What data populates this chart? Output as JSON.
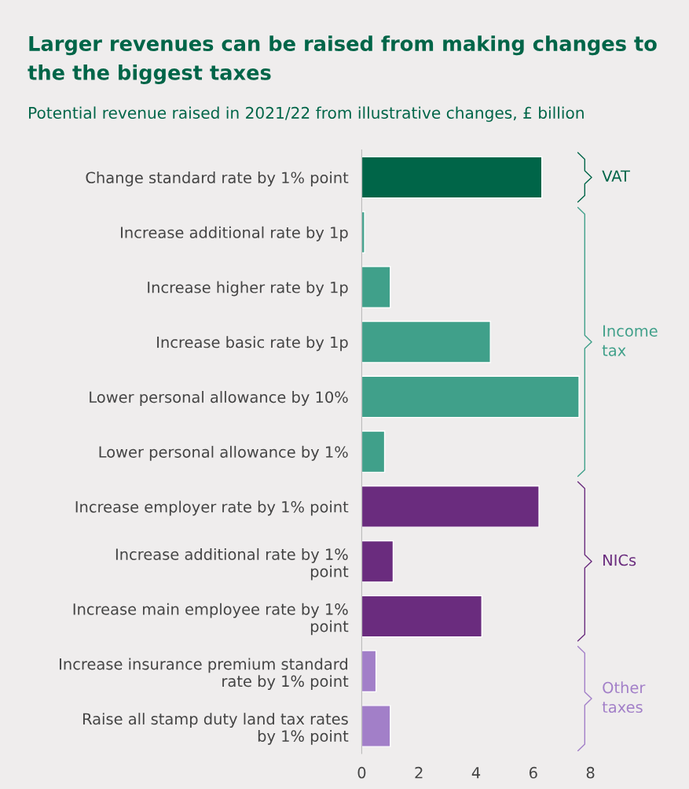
{
  "chart_data": {
    "type": "bar",
    "orientation": "horizontal",
    "title": "Larger revenues can be raised from making changes to the the biggest taxes",
    "subtitle": "Potential revenue raised in 2021/22 from illustrative changes, £ billion",
    "categories": [
      "Change standard rate by 1% point",
      "Increase additional rate by 1p",
      "Increase higher rate by 1p",
      "Increase basic rate by 1p",
      "Lower personal allowance by 10%",
      "Lower personal allowance by 1%",
      "Increase employer rate by 1% point",
      "Increase additional rate by 1% point",
      "Increase main employee rate by 1% point",
      "Increase insurance premium standard rate by 1% point",
      "Raise all stamp duty land tax rates by 1% point"
    ],
    "series": [
      {
        "name": "VAT",
        "color": "#006548",
        "values": [
          6.3,
          null,
          null,
          null,
          null,
          null,
          null,
          null,
          null,
          null,
          null
        ]
      },
      {
        "name": "Income tax",
        "color": "#40a08a",
        "values": [
          null,
          0.1,
          1.0,
          4.5,
          7.6,
          0.8,
          null,
          null,
          null,
          null,
          null
        ]
      },
      {
        "name": "NICs",
        "color": "#6a2c7e",
        "values": [
          null,
          null,
          null,
          null,
          null,
          null,
          6.2,
          1.1,
          4.2,
          null,
          null
        ]
      },
      {
        "name": "Other taxes",
        "color": "#a27fc8",
        "values": [
          null,
          null,
          null,
          null,
          null,
          null,
          null,
          null,
          null,
          0.5,
          1.0
        ]
      }
    ],
    "xlim": [
      0,
      8
    ],
    "xticks": [
      0,
      2,
      4,
      6,
      8
    ],
    "grid": false,
    "legend": false
  }
}
